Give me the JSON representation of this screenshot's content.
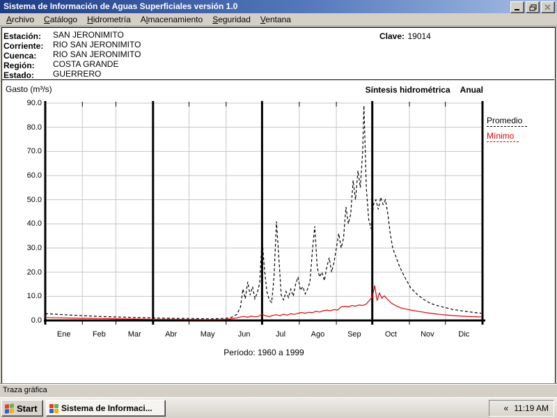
{
  "window": {
    "title": "Sistema de Información de Aguas Superficiales  versión 1.0"
  },
  "menu": {
    "items": [
      {
        "id": "archivo",
        "pre": "",
        "accel": "A",
        "post": "rchivo"
      },
      {
        "id": "catalogo",
        "pre": "",
        "accel": "C",
        "post": "atálogo"
      },
      {
        "id": "hidrometria",
        "pre": "",
        "accel": "H",
        "post": "idrometría"
      },
      {
        "id": "almacenamiento",
        "pre": "A",
        "accel": "l",
        "post": "macenamiento"
      },
      {
        "id": "seguridad",
        "pre": "",
        "accel": "S",
        "post": "eguridad"
      },
      {
        "id": "ventana",
        "pre": "",
        "accel": "V",
        "post": "entana"
      }
    ]
  },
  "station": {
    "rows": [
      {
        "label": "Estación:",
        "value": "SAN JERONIMITO"
      },
      {
        "label": "Corriente:",
        "value": "RIO SAN JERONIMITO"
      },
      {
        "label": "Cuenca:",
        "value": "RIO SAN JERONIMITO"
      },
      {
        "label": "Región:",
        "value": "COSTA GRANDE"
      },
      {
        "label": "Estado:",
        "value": "GUERRERO"
      }
    ],
    "clave_label": "Clave:",
    "clave_value": "19014"
  },
  "chart_data": {
    "type": "line",
    "title": "Síntesis hidrométrica",
    "period_mode": "Anual",
    "ylabel": "Gasto (m³/s)",
    "caption": "Período:  1960 a 1999",
    "ylim": [
      0,
      90
    ],
    "yticks": [
      0,
      10,
      20,
      30,
      40,
      50,
      60,
      70,
      80,
      90
    ],
    "ytick_labels": [
      "0.0",
      "10.0",
      "20.0",
      "30.0",
      "40.0",
      "50.0",
      "60.0",
      "70.0",
      "80.0",
      "90.0"
    ],
    "categories": [
      "Ene",
      "Feb",
      "Mar",
      "Abr",
      "May",
      "Jun",
      "Jul",
      "Ago",
      "Sep",
      "Oct",
      "Nov",
      "Dic"
    ],
    "month_starts": [
      0,
      31,
      59,
      90,
      120,
      151,
      181,
      212,
      243,
      273,
      304,
      334,
      365
    ],
    "grid": true,
    "legend_position": "right",
    "series": [
      {
        "name": "Promedio",
        "color": "#000000",
        "dashed": true,
        "points": [
          [
            0,
            2.8
          ],
          [
            8,
            2.6
          ],
          [
            15,
            2.4
          ],
          [
            22,
            2.2
          ],
          [
            31,
            2.0
          ],
          [
            40,
            1.8
          ],
          [
            50,
            1.6
          ],
          [
            59,
            1.45
          ],
          [
            70,
            1.3
          ],
          [
            80,
            1.2
          ],
          [
            90,
            1.05
          ],
          [
            100,
            0.95
          ],
          [
            110,
            0.85
          ],
          [
            120,
            0.8
          ],
          [
            130,
            0.72
          ],
          [
            140,
            0.7
          ],
          [
            148,
            0.8
          ],
          [
            153,
            1.0
          ],
          [
            157,
            1.6
          ],
          [
            160,
            2.6
          ],
          [
            163,
            5.5
          ],
          [
            165,
            13
          ],
          [
            167,
            9
          ],
          [
            169,
            16
          ],
          [
            171,
            10.5
          ],
          [
            173,
            14
          ],
          [
            175,
            9
          ],
          [
            177,
            11.5
          ],
          [
            179,
            15.5
          ],
          [
            181,
            34
          ],
          [
            183,
            21
          ],
          [
            185,
            12
          ],
          [
            187,
            8.5
          ],
          [
            189,
            7.5
          ],
          [
            191,
            18
          ],
          [
            193,
            41
          ],
          [
            195,
            26
          ],
          [
            197,
            10.5
          ],
          [
            199,
            8.5
          ],
          [
            201,
            12
          ],
          [
            203,
            9.5
          ],
          [
            205,
            13
          ],
          [
            207,
            10
          ],
          [
            209,
            15
          ],
          [
            211,
            18
          ],
          [
            213,
            12.5
          ],
          [
            215,
            14
          ],
          [
            217,
            11
          ],
          [
            219,
            13
          ],
          [
            221,
            16
          ],
          [
            223,
            29
          ],
          [
            225,
            39
          ],
          [
            227,
            22
          ],
          [
            229,
            18
          ],
          [
            231,
            20
          ],
          [
            233,
            16.5
          ],
          [
            235,
            22
          ],
          [
            237,
            26
          ],
          [
            239,
            20
          ],
          [
            241,
            24
          ],
          [
            243,
            30
          ],
          [
            245,
            36
          ],
          [
            247,
            30
          ],
          [
            249,
            34
          ],
          [
            251,
            47
          ],
          [
            253,
            40
          ],
          [
            255,
            44
          ],
          [
            257,
            58
          ],
          [
            259,
            50
          ],
          [
            261,
            62
          ],
          [
            263,
            55
          ],
          [
            265,
            70
          ],
          [
            266,
            89
          ],
          [
            267,
            72
          ],
          [
            268,
            55
          ],
          [
            270,
            42
          ],
          [
            272,
            38
          ],
          [
            274,
            48
          ],
          [
            276,
            50
          ],
          [
            278,
            46
          ],
          [
            280,
            51
          ],
          [
            282,
            48
          ],
          [
            284,
            50
          ],
          [
            286,
            44
          ],
          [
            288,
            36
          ],
          [
            290,
            30
          ],
          [
            293,
            26
          ],
          [
            296,
            22
          ],
          [
            300,
            18
          ],
          [
            305,
            13.5
          ],
          [
            310,
            11
          ],
          [
            315,
            9
          ],
          [
            320,
            7.5
          ],
          [
            325,
            6.5
          ],
          [
            330,
            5.8
          ],
          [
            335,
            5.2
          ],
          [
            340,
            4.6
          ],
          [
            345,
            4.2
          ],
          [
            350,
            3.8
          ],
          [
            355,
            3.5
          ],
          [
            360,
            3.2
          ],
          [
            364,
            3.0
          ]
        ]
      },
      {
        "name": "Mínimo",
        "color": "#e00000",
        "dashed": false,
        "points": [
          [
            0,
            1.2
          ],
          [
            10,
            1.1
          ],
          [
            20,
            1.0
          ],
          [
            31,
            0.9
          ],
          [
            45,
            0.8
          ],
          [
            59,
            0.7
          ],
          [
            75,
            0.6
          ],
          [
            90,
            0.5
          ],
          [
            105,
            0.45
          ],
          [
            120,
            0.4
          ],
          [
            135,
            0.35
          ],
          [
            148,
            0.4
          ],
          [
            153,
            0.55
          ],
          [
            158,
            0.9
          ],
          [
            163,
            1.4
          ],
          [
            166,
            1.7
          ],
          [
            169,
            1.3
          ],
          [
            172,
            1.8
          ],
          [
            175,
            1.5
          ],
          [
            178,
            1.7
          ],
          [
            181,
            2.6
          ],
          [
            184,
            1.9
          ],
          [
            187,
            1.6
          ],
          [
            190,
            2.1
          ],
          [
            193,
            2.4
          ],
          [
            196,
            2.0
          ],
          [
            199,
            2.6
          ],
          [
            202,
            2.2
          ],
          [
            205,
            2.8
          ],
          [
            208,
            2.5
          ],
          [
            211,
            3.0
          ],
          [
            214,
            3.3
          ],
          [
            217,
            3.0
          ],
          [
            220,
            3.4
          ],
          [
            223,
            3.2
          ],
          [
            226,
            3.8
          ],
          [
            229,
            3.5
          ],
          [
            232,
            4.0
          ],
          [
            235,
            4.3
          ],
          [
            238,
            4.0
          ],
          [
            241,
            4.5
          ],
          [
            244,
            4.3
          ],
          [
            247,
            5.6
          ],
          [
            250,
            5.9
          ],
          [
            253,
            5.6
          ],
          [
            256,
            6.2
          ],
          [
            259,
            5.9
          ],
          [
            262,
            6.4
          ],
          [
            265,
            6.2
          ],
          [
            268,
            6.8
          ],
          [
            271,
            8.6
          ],
          [
            273,
            9.6
          ],
          [
            275,
            14.5
          ],
          [
            277,
            8.2
          ],
          [
            279,
            11.4
          ],
          [
            281,
            9.2
          ],
          [
            283,
            10.2
          ],
          [
            286,
            8.6
          ],
          [
            289,
            7.2
          ],
          [
            293,
            6.0
          ],
          [
            297,
            5.2
          ],
          [
            301,
            4.7
          ],
          [
            306,
            4.2
          ],
          [
            311,
            3.8
          ],
          [
            316,
            3.4
          ],
          [
            321,
            3.0
          ],
          [
            326,
            2.7
          ],
          [
            331,
            2.4
          ],
          [
            336,
            2.2
          ],
          [
            341,
            2.0
          ],
          [
            346,
            1.85
          ],
          [
            351,
            1.7
          ],
          [
            356,
            1.6
          ],
          [
            364,
            1.5
          ]
        ]
      }
    ]
  },
  "legend": [
    {
      "name": "Promedio",
      "color": "#000000"
    },
    {
      "name": "Mínimo",
      "color": "#e00000"
    }
  ],
  "statusbar": {
    "text": "Traza gráfica"
  },
  "taskbar": {
    "start_label": "Start",
    "task_label": "Sistema de Informaci...",
    "tray_chevron": "«",
    "clock": "11:19 AM"
  },
  "icons": {
    "start_flag": "windows-flag",
    "task_button": "app-window-icon",
    "flag_colors": [
      "#e33e30",
      "#6cb33f",
      "#2f5fd0",
      "#f8b000"
    ]
  }
}
